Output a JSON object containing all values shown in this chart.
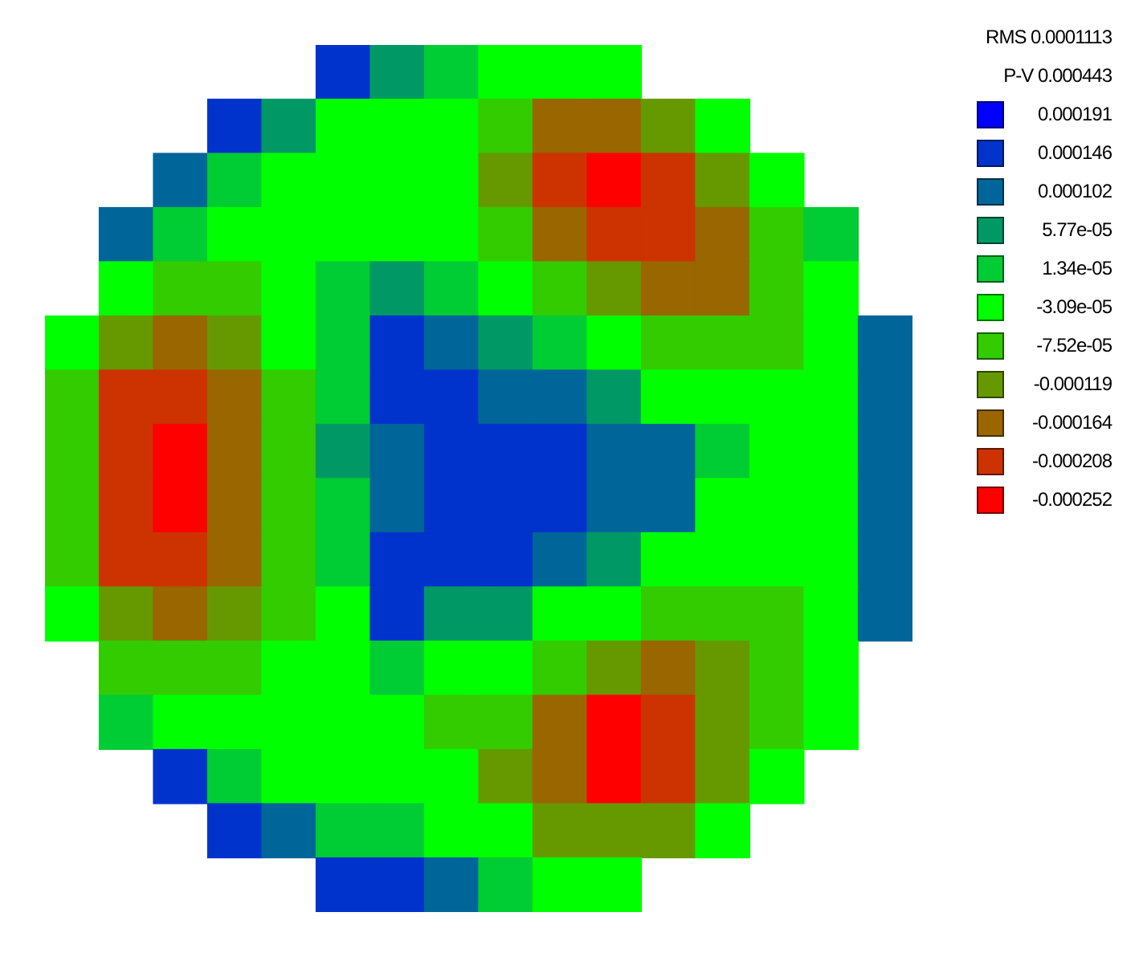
{
  "chart_data": {
    "type": "heatmap",
    "categories": [
      null,
      null,
      null,
      null,
      null,
      null,
      null,
      null,
      null,
      null,
      null,
      null,
      null,
      null,
      null,
      null
    ],
    "y_categories": [
      null,
      null,
      null,
      null,
      null,
      null,
      null,
      null,
      null,
      null,
      null,
      null,
      null,
      null,
      null,
      null
    ],
    "tick_labels": false,
    "cells": [
      [
        null,
        null,
        null,
        null,
        null,
        0.00015,
        6e-05,
        1e-05,
        -2e-05,
        -3e-05,
        -4e-05,
        null,
        null,
        null,
        null,
        null
      ],
      [
        null,
        null,
        null,
        0.00016,
        4e-05,
        -2e-05,
        -2e-05,
        -4e-05,
        -8e-05,
        -0.00015,
        -0.00015,
        -0.00011,
        -5e-05,
        null,
        null,
        null
      ],
      [
        null,
        null,
        0.00012,
        3e-05,
        -3e-05,
        -3e-05,
        -3e-05,
        -4e-05,
        -0.00012,
        -0.00021,
        -0.00024,
        -0.00022,
        -0.00012,
        -5e-05,
        null,
        null
      ],
      [
        null,
        0.0001,
        0,
        -3e-05,
        -3e-05,
        -3e-05,
        -2e-05,
        -4e-05,
        -8e-05,
        -0.00015,
        -0.00021,
        -0.00022,
        -0.00018,
        -8e-05,
        0,
        null
      ],
      [
        null,
        -3e-05,
        -6e-05,
        -6e-05,
        -3e-05,
        1e-05,
        5e-05,
        2e-05,
        -3e-05,
        -8e-05,
        -0.00012,
        -0.00016,
        -0.00015,
        -8e-05,
        -1e-05,
        null
      ],
      [
        -3e-05,
        -0.0001,
        -0.00015,
        -0.00011,
        -4e-05,
        1e-05,
        0.00014,
        0.0001,
        5e-05,
        0,
        -4e-05,
        -7e-05,
        -9e-05,
        -6e-05,
        -1e-05,
        0.00011
      ],
      [
        -7e-05,
        -0.0002,
        -0.00022,
        -0.00015,
        -6e-05,
        3e-05,
        0.00013,
        0.00014,
        0.00012,
        0.0001,
        5e-05,
        -1e-05,
        -4e-05,
        -4e-05,
        -2e-05,
        0.00011
      ],
      [
        -9e-05,
        -0.00021,
        -0.00025,
        -0.00017,
        -7e-05,
        4e-05,
        0.00012,
        0.00015,
        0.00014,
        0.00014,
        0.00012,
        0.00011,
        0,
        -4e-05,
        -3e-05,
        0.0001
      ],
      [
        -8e-05,
        -0.00021,
        -0.00025,
        -0.00017,
        -7e-05,
        3e-05,
        0.00012,
        0.00015,
        0.00014,
        0.00014,
        0.00012,
        9e-05,
        -2e-05,
        -4e-05,
        -3e-05,
        0.0001
      ],
      [
        -7e-05,
        -0.0002,
        -0.00022,
        -0.00017,
        -7e-05,
        1e-05,
        0.00013,
        0.00014,
        0.00013,
        0.0001,
        4e-05,
        -2e-05,
        -4e-05,
        -4e-05,
        -2e-05,
        0.00011
      ],
      [
        -3e-05,
        -0.00014,
        -0.00018,
        -0.00012,
        -6e-05,
        -1e-05,
        0.00014,
        6e-05,
        5e-05,
        -2e-05,
        -4e-05,
        -7e-05,
        -9e-05,
        -6e-05,
        -1e-05,
        0.00011
      ],
      [
        null,
        -6e-05,
        -8e-05,
        -6e-05,
        -3e-05,
        -2e-05,
        2e-05,
        -2e-05,
        -4e-05,
        -9e-05,
        -0.00014,
        -0.00018,
        -0.00014,
        -8e-05,
        -2e-05,
        null
      ],
      [
        null,
        3e-05,
        -2e-05,
        -3e-05,
        -3e-05,
        -3e-05,
        -3e-05,
        -6e-05,
        -9e-05,
        -0.00017,
        -0.00024,
        -0.00022,
        -0.00014,
        -8e-05,
        -2e-05,
        null
      ],
      [
        null,
        null,
        0.00014,
        2e-05,
        -2e-05,
        -3e-05,
        -3e-05,
        -4e-05,
        -0.0001,
        -0.00018,
        -0.00024,
        -0.00019,
        -0.0001,
        -4e-05,
        null,
        null
      ],
      [
        null,
        null,
        null,
        0.00016,
        9e-05,
        3e-05,
        0,
        -3e-05,
        -5e-05,
        -0.0001,
        -0.00013,
        -0.00011,
        -5e-05,
        null,
        null,
        null
      ],
      [
        null,
        null,
        null,
        null,
        null,
        0.00015,
        0.00014,
        9e-05,
        2e-05,
        -2e-05,
        -3e-05,
        null,
        null,
        null,
        null,
        null
      ]
    ],
    "cticks": [
      0.000191,
      0.000146,
      0.000102,
      {
        "value": 5.77e-05,
        "label": "5.77e-05"
      },
      {
        "value": 1.34e-05,
        "label": "1.34e-05"
      },
      {
        "value": -3.09e-05,
        "label": "-3.09e-05"
      },
      {
        "value": -7.52e-05,
        "label": "-7.52e-05"
      },
      -0.000119,
      -0.000164,
      -0.000208,
      -0.000252
    ],
    "colors": [
      "#0000ff",
      "#0033cc",
      "#006699",
      "#009966",
      "#00cc33",
      "#00ff00",
      "#33cc00",
      "#669900",
      "#996600",
      "#cc3300",
      "#ff0000"
    ],
    "annotations": [
      "RMS 0.0001113",
      "P-V 0.000443"
    ]
  }
}
